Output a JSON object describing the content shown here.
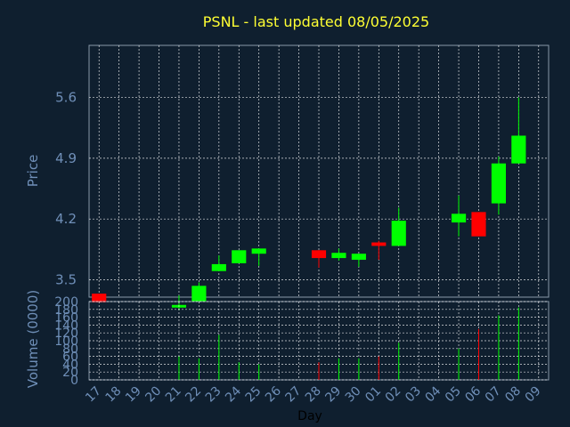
{
  "chart_data": {
    "type": "candlestick",
    "title": "PSNL - last updated 08/05/2025",
    "xlabel": "Day",
    "price_axis": {
      "label": "Price",
      "ticks": [
        "3.5",
        "4.2",
        "4.9",
        "5.6"
      ],
      "tick_values": [
        3.5,
        4.2,
        4.9,
        5.6
      ],
      "ylim": [
        3.3,
        6.2
      ]
    },
    "volume_axis": {
      "label": "Volume (0000)",
      "ticks": [
        "0",
        "20",
        "40",
        "60",
        "80",
        "100",
        "120",
        "140",
        "160",
        "180",
        "200"
      ],
      "tick_values": [
        0,
        20,
        40,
        60,
        80,
        100,
        120,
        140,
        160,
        180,
        200
      ],
      "ylim": [
        0,
        200
      ]
    },
    "x_labels": [
      "17",
      "18",
      "19",
      "20",
      "21",
      "22",
      "23",
      "24",
      "25",
      "26",
      "27",
      "28",
      "29",
      "30",
      "01",
      "02",
      "03",
      "04",
      "05",
      "06",
      "07",
      "08",
      "09"
    ],
    "candles": [
      {
        "x": "17",
        "open": 3.34,
        "close": 3.24,
        "high": 3.34,
        "low": 3.24,
        "volume": 0
      },
      {
        "x": "21",
        "open": 3.19,
        "close": 3.21,
        "high": 3.32,
        "low": 3.15,
        "volume": 60
      },
      {
        "x": "22",
        "open": 3.25,
        "close": 3.43,
        "high": 3.47,
        "low": 3.25,
        "volume": 55
      },
      {
        "x": "23",
        "open": 3.6,
        "close": 3.68,
        "high": 3.78,
        "low": 3.6,
        "volume": 115
      },
      {
        "x": "24",
        "open": 3.69,
        "close": 3.84,
        "high": 3.84,
        "low": 3.69,
        "volume": 45
      },
      {
        "x": "25",
        "open": 3.8,
        "close": 3.86,
        "high": 3.86,
        "low": 3.66,
        "volume": 40
      },
      {
        "x": "28",
        "open": 3.84,
        "close": 3.75,
        "high": 3.84,
        "low": 3.64,
        "volume": 45
      },
      {
        "x": "29",
        "open": 3.75,
        "close": 3.81,
        "high": 3.86,
        "low": 3.72,
        "volume": 55
      },
      {
        "x": "30",
        "open": 3.73,
        "close": 3.8,
        "high": 3.8,
        "low": 3.65,
        "volume": 55
      },
      {
        "x": "01",
        "open": 3.93,
        "close": 3.89,
        "high": 3.95,
        "low": 3.73,
        "volume": 60
      },
      {
        "x": "02",
        "open": 3.89,
        "close": 4.18,
        "high": 4.33,
        "low": 3.89,
        "volume": 95
      },
      {
        "x": "05",
        "open": 4.16,
        "close": 4.26,
        "high": 4.47,
        "low": 4.0,
        "volume": 80
      },
      {
        "x": "06",
        "open": 4.28,
        "close": 4.0,
        "high": 4.28,
        "low": 4.0,
        "volume": 130
      },
      {
        "x": "07",
        "open": 4.38,
        "close": 4.84,
        "high": 4.92,
        "low": 4.25,
        "volume": 165
      },
      {
        "x": "08",
        "open": 4.84,
        "close": 5.16,
        "high": 5.6,
        "low": 4.84,
        "volume": 185
      }
    ],
    "colors": {
      "up": "#00ff00",
      "down": "#ff0000"
    },
    "grid": true
  }
}
